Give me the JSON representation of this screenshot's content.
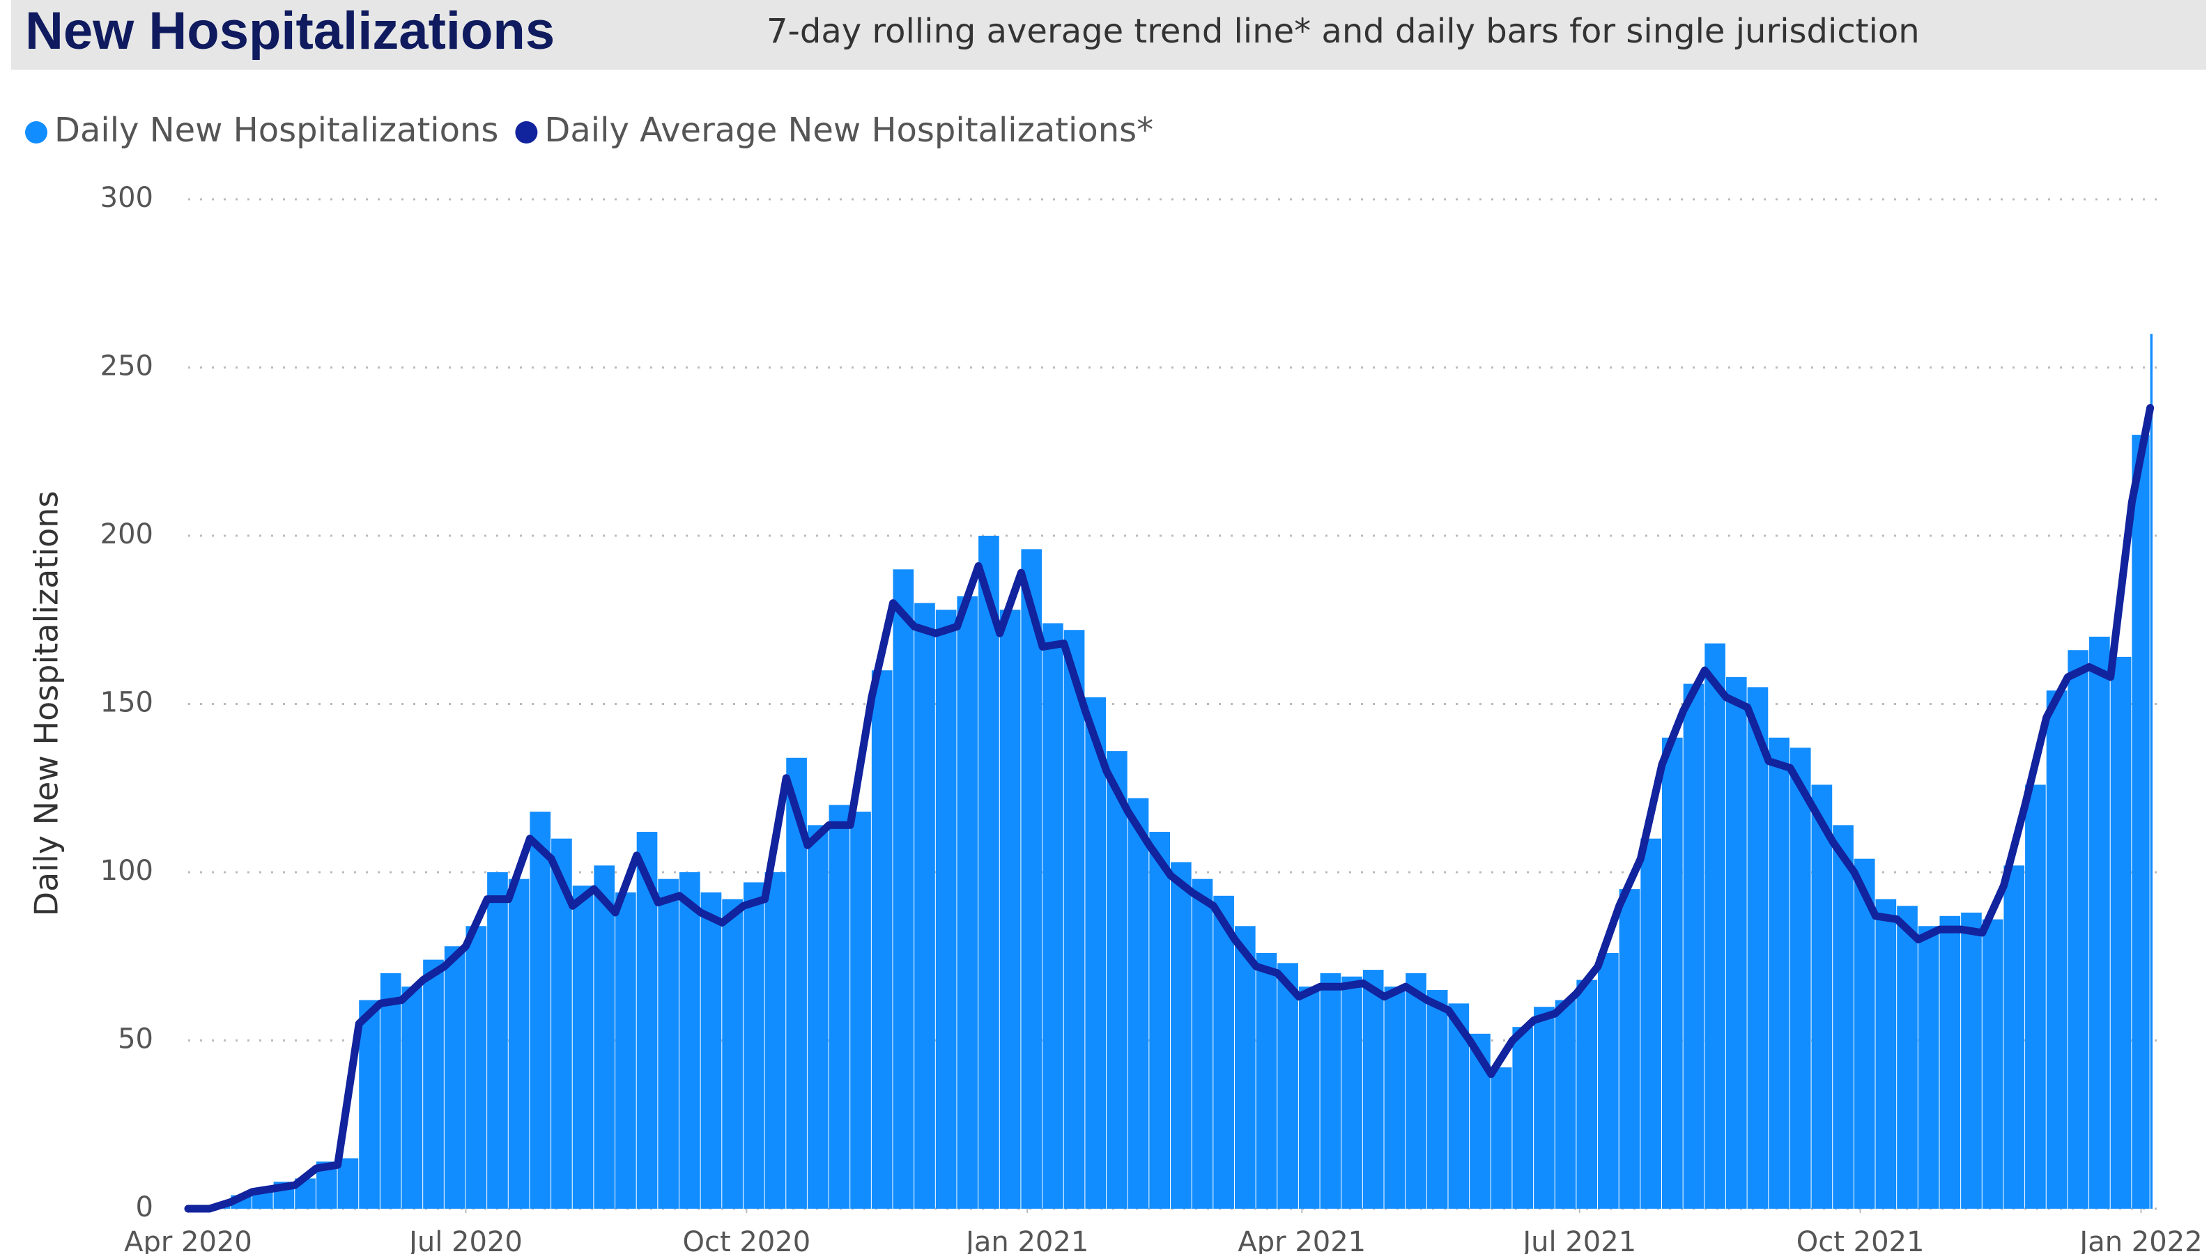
{
  "chart_data": {
    "type": "bar-line",
    "title": "New Hospitalizations",
    "subtitle": "7-day rolling average trend line* and daily bars for single jurisdiction",
    "y_label": "Daily New Hospitalizations",
    "xlim": [
      "2020-04-01",
      "2022-01-05"
    ],
    "xticks": [
      {
        "value": "2020-04-01",
        "label": "Apr 2020"
      },
      {
        "value": "2020-07-01",
        "label": "Jul 2020"
      },
      {
        "value": "2020-10-01",
        "label": "Oct 2020"
      },
      {
        "value": "2021-01-01",
        "label": "Jan 2021"
      },
      {
        "value": "2021-04-01",
        "label": "Apr 2021"
      },
      {
        "value": "2021-07-01",
        "label": "Jul 2021"
      },
      {
        "value": "2021-10-01",
        "label": "Oct 2021"
      },
      {
        "value": "2022-01-01",
        "label": "Jan 2022"
      }
    ],
    "ylim": [
      0,
      300
    ],
    "yticks": [
      0,
      50,
      100,
      150,
      200,
      250,
      300
    ],
    "grid": true,
    "legend": "top-left",
    "x": [
      "2020-04-01",
      "2020-04-08",
      "2020-04-15",
      "2020-04-22",
      "2020-04-29",
      "2020-05-06",
      "2020-05-13",
      "2020-05-20",
      "2020-05-27",
      "2020-06-03",
      "2020-06-10",
      "2020-06-17",
      "2020-06-24",
      "2020-07-01",
      "2020-07-08",
      "2020-07-15",
      "2020-07-22",
      "2020-07-29",
      "2020-08-05",
      "2020-08-12",
      "2020-08-19",
      "2020-08-26",
      "2020-09-02",
      "2020-09-09",
      "2020-09-16",
      "2020-09-23",
      "2020-09-30",
      "2020-10-07",
      "2020-10-14",
      "2020-10-21",
      "2020-10-28",
      "2020-11-04",
      "2020-11-11",
      "2020-11-18",
      "2020-11-25",
      "2020-12-02",
      "2020-12-09",
      "2020-12-16",
      "2020-12-23",
      "2020-12-30",
      "2021-01-06",
      "2021-01-13",
      "2021-01-20",
      "2021-01-27",
      "2021-02-03",
      "2021-02-10",
      "2021-02-17",
      "2021-02-24",
      "2021-03-03",
      "2021-03-10",
      "2021-03-17",
      "2021-03-24",
      "2021-03-31",
      "2021-04-07",
      "2021-04-14",
      "2021-04-21",
      "2021-04-28",
      "2021-05-05",
      "2021-05-12",
      "2021-05-19",
      "2021-05-26",
      "2021-06-02",
      "2021-06-09",
      "2021-06-16",
      "2021-06-23",
      "2021-06-30",
      "2021-07-07",
      "2021-07-14",
      "2021-07-21",
      "2021-07-28",
      "2021-08-04",
      "2021-08-11",
      "2021-08-18",
      "2021-08-25",
      "2021-09-01",
      "2021-09-08",
      "2021-09-15",
      "2021-09-22",
      "2021-09-29",
      "2021-10-06",
      "2021-10-13",
      "2021-10-20",
      "2021-10-27",
      "2021-11-03",
      "2021-11-10",
      "2021-11-17",
      "2021-11-24",
      "2021-12-01",
      "2021-12-08",
      "2021-12-15",
      "2021-12-22",
      "2021-12-29",
      "2022-01-04"
    ],
    "series": [
      {
        "name": "Daily New Hospitalizations",
        "color": "#118dff",
        "kind": "bar",
        "values": [
          1,
          1,
          4,
          6,
          8,
          9,
          14,
          15,
          62,
          70,
          66,
          74,
          78,
          84,
          100,
          98,
          118,
          110,
          96,
          102,
          94,
          112,
          98,
          100,
          94,
          92,
          97,
          100,
          134,
          114,
          120,
          118,
          160,
          190,
          180,
          178,
          182,
          200,
          178,
          196,
          174,
          172,
          152,
          136,
          122,
          112,
          103,
          98,
          93,
          84,
          76,
          73,
          66,
          70,
          69,
          71,
          66,
          70,
          65,
          61,
          52,
          42,
          54,
          60,
          62,
          68,
          76,
          95,
          110,
          140,
          156,
          168,
          158,
          155,
          140,
          137,
          126,
          114,
          104,
          92,
          90,
          84,
          87,
          88,
          86,
          102,
          126,
          154,
          166,
          170,
          164,
          230,
          260
        ]
      },
      {
        "name": "Daily Average New Hospitalizations*",
        "color": "#12239e",
        "kind": "line",
        "values": [
          0,
          0,
          2,
          5,
          6,
          7,
          12,
          13,
          55,
          61,
          62,
          68,
          72,
          78,
          92,
          92,
          110,
          104,
          90,
          95,
          88,
          105,
          91,
          93,
          88,
          85,
          90,
          92,
          128,
          108,
          114,
          114,
          152,
          180,
          173,
          171,
          173,
          191,
          171,
          189,
          167,
          168,
          148,
          130,
          118,
          108,
          99,
          94,
          90,
          80,
          72,
          70,
          63,
          66,
          66,
          67,
          63,
          66,
          62,
          59,
          50,
          40,
          50,
          56,
          58,
          64,
          72,
          90,
          104,
          132,
          148,
          160,
          152,
          149,
          133,
          131,
          120,
          109,
          100,
          87,
          86,
          80,
          83,
          83,
          82,
          96,
          120,
          146,
          158,
          161,
          158,
          210,
          238
        ]
      }
    ]
  }
}
